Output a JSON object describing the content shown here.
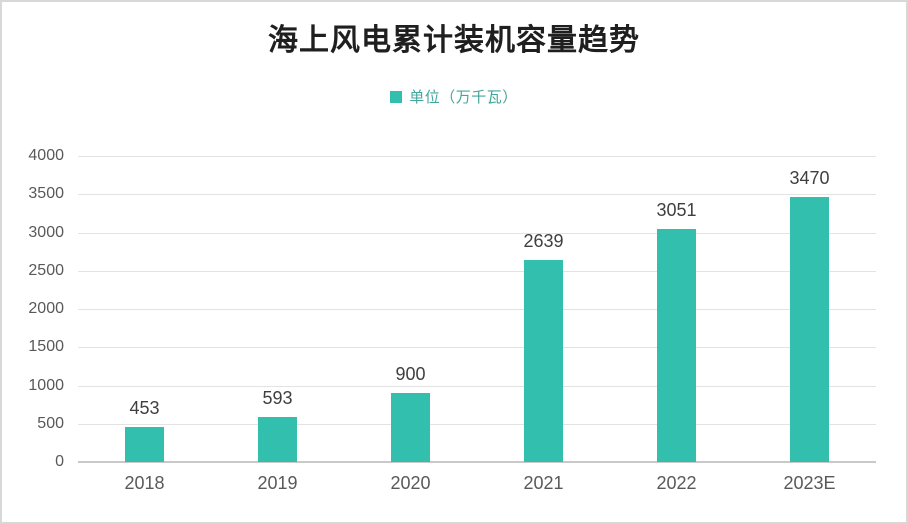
{
  "chart_data": {
    "type": "bar",
    "title": "海上风电累计装机容量趋势",
    "legend_label": "单位（万千瓦）",
    "legend_position": "top",
    "categories": [
      "2018",
      "2019",
      "2020",
      "2021",
      "2022",
      "2023E"
    ],
    "values": [
      453,
      593,
      900,
      2639,
      3051,
      3470
    ],
    "xlabel": "",
    "ylabel": "",
    "ylim": [
      0,
      4000
    ],
    "ytick_step": 500,
    "yticks": [
      0,
      500,
      1000,
      1500,
      2000,
      2500,
      3000,
      3500,
      4000
    ],
    "grid": true,
    "data_labels_shown": true,
    "colors": {
      "bar": "#33BFAD",
      "title_text": "#1F1F1F",
      "legend_text": "#44A79B",
      "data_label": "#3F3F3F",
      "axis_label": "#595959",
      "gridline": "#E3E3E3",
      "axis_line": "#C9C9C9",
      "page_border": "#D8D8D8"
    }
  }
}
